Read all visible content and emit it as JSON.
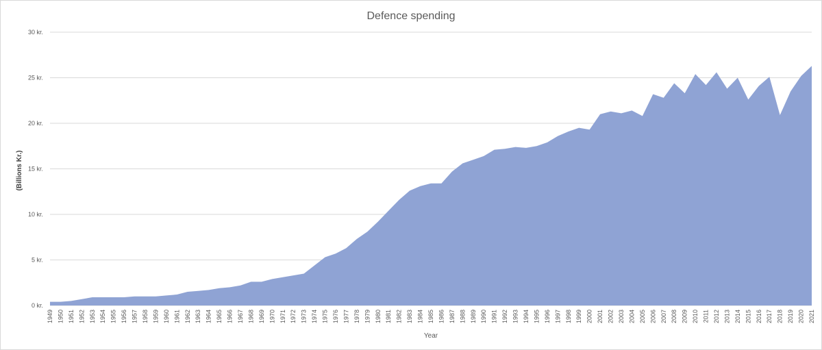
{
  "chart_data": {
    "type": "area",
    "title": "Defence spending",
    "xlabel": "Year",
    "ylabel": "(Billions Kr.)",
    "ylim": [
      0,
      30
    ],
    "yticks": [
      {
        "value": 0,
        "label": "0 kr."
      },
      {
        "value": 5,
        "label": "5 kr."
      },
      {
        "value": 10,
        "label": "10 kr."
      },
      {
        "value": 15,
        "label": "15 kr."
      },
      {
        "value": 20,
        "label": "20 kr."
      },
      {
        "value": 25,
        "label": "25 kr."
      },
      {
        "value": 30,
        "label": "30 kr."
      }
    ],
    "grid": true,
    "legend": "none",
    "color": "#8fa3d4",
    "x": [
      "1949",
      "1950",
      "1951",
      "1952",
      "1953",
      "1954",
      "1955",
      "1956",
      "1957",
      "1958",
      "1959",
      "1960",
      "1961",
      "1962",
      "1963",
      "1964",
      "1965",
      "1966",
      "1967",
      "1968",
      "1969",
      "1970",
      "1971",
      "1972",
      "1973",
      "1974",
      "1975",
      "1976",
      "1977",
      "1978",
      "1979",
      "1980",
      "1981",
      "1982",
      "1983",
      "1984",
      "1985",
      "1986",
      "1987",
      "1988",
      "1989",
      "1990",
      "1991",
      "1992",
      "1993",
      "1994",
      "1995",
      "1996",
      "1997",
      "1998",
      "1999",
      "2000",
      "2001",
      "2002",
      "2003",
      "2004",
      "2005",
      "2006",
      "2007",
      "2008",
      "2009",
      "2010",
      "2011",
      "2012",
      "2013",
      "2014",
      "2015",
      "2016",
      "2017",
      "2018",
      "2019",
      "2020",
      "2021"
    ],
    "values": [
      0.4,
      0.4,
      0.5,
      0.7,
      0.9,
      0.9,
      0.9,
      0.9,
      1.0,
      1.0,
      1.0,
      1.1,
      1.2,
      1.5,
      1.6,
      1.7,
      1.9,
      2.0,
      2.2,
      2.6,
      2.6,
      2.9,
      3.1,
      3.3,
      3.5,
      4.4,
      5.3,
      5.7,
      6.3,
      7.3,
      8.1,
      9.2,
      10.4,
      11.6,
      12.6,
      13.1,
      13.4,
      13.4,
      14.7,
      15.6,
      16.0,
      16.4,
      17.1,
      17.2,
      17.4,
      17.3,
      17.5,
      17.9,
      18.6,
      19.1,
      19.5,
      19.3,
      21.0,
      21.3,
      21.1,
      21.4,
      20.8,
      23.2,
      22.8,
      24.4,
      23.3,
      25.4,
      24.2,
      25.6,
      23.8,
      25.0,
      22.6,
      24.1,
      25.1,
      20.9,
      23.5,
      25.2,
      26.3
    ]
  }
}
